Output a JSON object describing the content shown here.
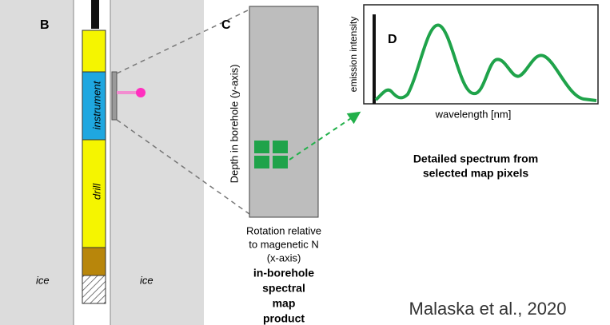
{
  "panel_b": {
    "label": "B",
    "instrument": "instrument",
    "drill": "drill",
    "ice_left": "ice",
    "ice_right": "ice"
  },
  "panel_c": {
    "label": "C",
    "y_axis": "Depth in borehole  (y-axis)",
    "x_axis_lines": [
      "Rotation relative",
      "to magenetic N",
      "(x-axis)"
    ],
    "caption_lines": [
      "in-borehole",
      "spectral",
      "map",
      "product"
    ]
  },
  "panel_d": {
    "label": "D",
    "y_axis": "emission intensity",
    "x_axis": "wavelength  [nm]",
    "caption_lines": [
      "Detailed spectrum from",
      "selected map pixels"
    ]
  },
  "citation": "Malaska et al., 2020"
}
